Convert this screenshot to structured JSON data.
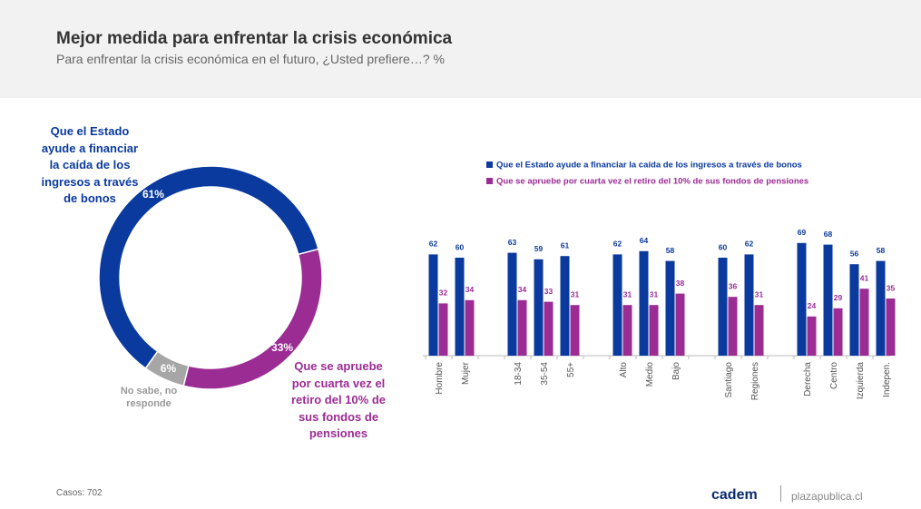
{
  "header": {
    "title": "Mejor medida para enfrentar la crisis económica",
    "subtitle": "Para enfrentar la crisis económica en el futuro, ¿Usted prefiere…? %"
  },
  "chart_data": [
    {
      "type": "donut",
      "categories": [
        "Que el Estado ayude a financiar la caída de los ingresos a través de bonos",
        "Que se apruebe por cuarta vez el retiro del 10% de sus fondos de pensiones",
        "No sabe, no responde"
      ],
      "values": [
        61,
        33,
        6
      ],
      "value_labels": [
        "61%",
        "33%",
        "6%"
      ],
      "colors": [
        "#0a3a9e",
        "#9b2c94",
        "#a6a6a6"
      ]
    },
    {
      "type": "bar",
      "categories": [
        "Hombre",
        "Mujer",
        null,
        "18-34",
        "35-54",
        "55+",
        null,
        "Alto",
        "Medio",
        "Bajo",
        null,
        "Santiago",
        "Regiones",
        null,
        "Derecha",
        "Centro",
        "Izquierda",
        "Indepen."
      ],
      "series": [
        {
          "name": "Que el Estado ayude a financiar la caída de los ingresos a través de bonos",
          "color": "#0a3a9e",
          "values": [
            62,
            60,
            null,
            63,
            59,
            61,
            null,
            62,
            64,
            58,
            null,
            60,
            62,
            null,
            69,
            68,
            56,
            58
          ]
        },
        {
          "name": "Que se apruebe por cuarta vez el retiro del 10% de sus fondos de pensiones",
          "color": "#9b2c94",
          "values": [
            32,
            34,
            null,
            34,
            33,
            31,
            null,
            31,
            31,
            38,
            null,
            36,
            31,
            null,
            24,
            29,
            41,
            35
          ]
        }
      ]
    }
  ],
  "footer": {
    "cases": "Casos: 702",
    "logo": "cadem",
    "site": "plazapublica.cl"
  }
}
